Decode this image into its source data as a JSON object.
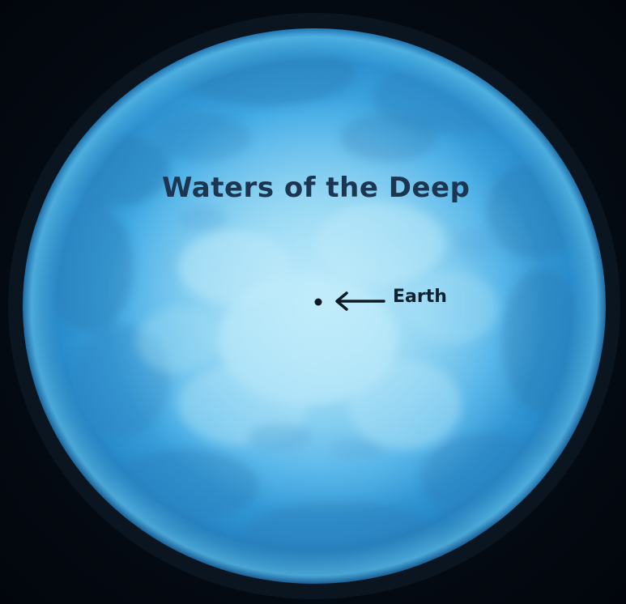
{
  "diagram": {
    "title": "Waters of the Deep",
    "earth_label": "Earth"
  },
  "colors": {
    "background": "#050b14",
    "sphere_edge": "#1a6fb0",
    "sphere_mid": "#3aa8e6",
    "sphere_core": "#8fd6f5",
    "title_text": "#1c3550",
    "label_text": "#10212f"
  }
}
